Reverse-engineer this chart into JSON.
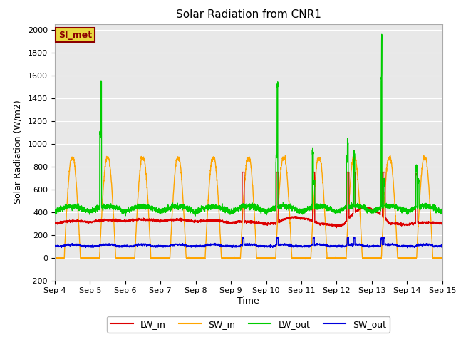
{
  "title": "Solar Radiation from CNR1",
  "xlabel": "Time",
  "ylabel": "Solar Radiation (W/m2)",
  "ylim": [
    -200,
    2050
  ],
  "yticks": [
    -200,
    0,
    200,
    400,
    600,
    800,
    1000,
    1200,
    1400,
    1600,
    1800,
    2000
  ],
  "xtick_labels": [
    "Sep 4",
    "Sep 5",
    "Sep 6",
    "Sep 7",
    "Sep 8",
    "Sep 9",
    "Sep 10",
    "Sep 11",
    "Sep 12",
    "Sep 13",
    "Sep 14",
    "Sep 15"
  ],
  "fig_bg_color": "#ffffff",
  "plot_bg_color": "#e8e8e8",
  "grid_color": "#ffffff",
  "annotation_text": "SI_met",
  "annotation_bg": "#e8d840",
  "annotation_border": "#8B0000",
  "colors": {
    "LW_in": "#dd0000",
    "SW_in": "#ffa500",
    "LW_out": "#00cc00",
    "SW_out": "#0000dd"
  },
  "linewidth": 1.0
}
